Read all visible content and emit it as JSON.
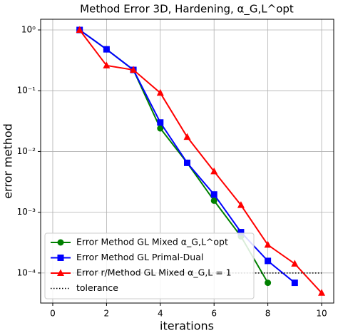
{
  "chart_data": {
    "type": "line",
    "title": "Method Error 3D, Hardening, α_G,L^opt",
    "x_label": "iterations",
    "y_label": "error method",
    "xlim": [
      -0.45,
      10.45
    ],
    "xticks": [
      0,
      2,
      4,
      6,
      8,
      10
    ],
    "ylim": [
      3.2e-05,
      1.5
    ],
    "y_log": true,
    "yticks": [
      {
        "value": 1,
        "label": "10⁰"
      },
      {
        "value": 0.1,
        "label": "10⁻¹"
      },
      {
        "value": 0.01,
        "label": "10⁻²"
      },
      {
        "value": 0.001,
        "label": "10⁻³"
      },
      {
        "value": 0.0001,
        "label": "10⁻⁴"
      }
    ],
    "grid": true,
    "legend": "lower left",
    "series": [
      {
        "name": "Error Method GL Mixed α_G,L^opt",
        "color": "#008000",
        "marker": "circle",
        "x": [
          1,
          2,
          3,
          4,
          5,
          6,
          7,
          8
        ],
        "values": [
          1,
          0.48,
          0.22,
          0.024,
          0.0065,
          0.00155,
          0.0004,
          6.9e-05
        ]
      },
      {
        "name": "Error Method GL Primal-Dual",
        "color": "#0000ff",
        "marker": "square",
        "x": [
          1,
          2,
          3,
          4,
          5,
          6,
          7,
          8,
          9
        ],
        "values": [
          1,
          0.48,
          0.22,
          0.03,
          0.0065,
          0.00196,
          0.00047,
          0.000158,
          6.9e-05
        ]
      },
      {
        "name": "Error r/Method GL Mixed α_G,L = 1",
        "color": "#ff0000",
        "marker": "triangle",
        "x": [
          1,
          2,
          3,
          4,
          5,
          6,
          7,
          8,
          9,
          10
        ],
        "values": [
          1,
          0.26,
          0.22,
          0.092,
          0.0173,
          0.0047,
          0.00131,
          0.00029,
          0.000142,
          4.7e-05
        ]
      },
      {
        "name": "tolerance",
        "color": "#000000",
        "marker": "none",
        "dash": "dotted",
        "x": [
          0,
          10
        ],
        "values": [
          0.0001,
          0.0001
        ]
      }
    ]
  }
}
